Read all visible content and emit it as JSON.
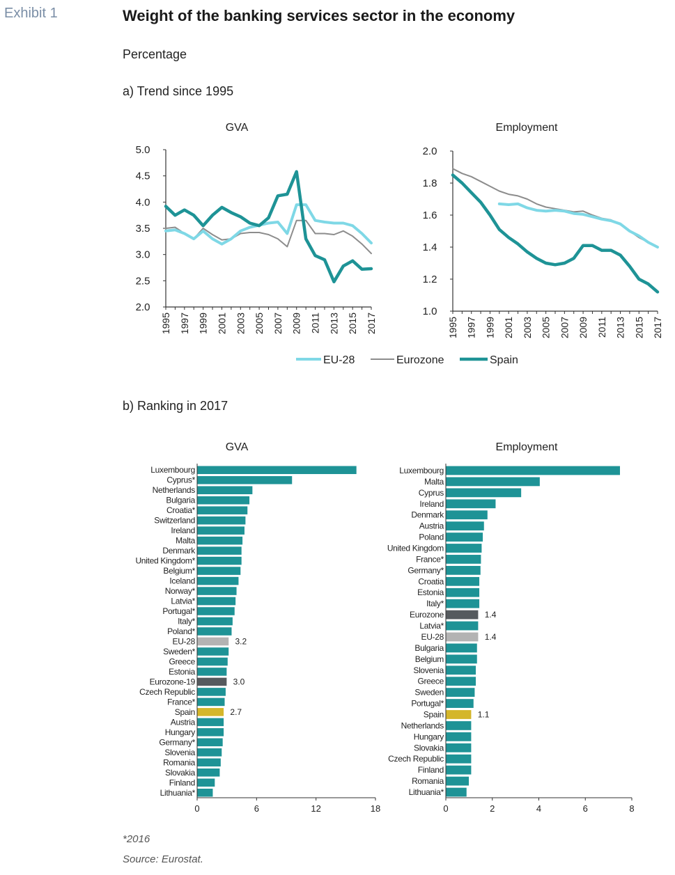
{
  "header": {
    "exhibit": "Exhibit 1",
    "title": "Weight of the banking services sector in the economy",
    "subtitle": "Percentage",
    "section_a": "a) Trend since 1995",
    "section_b": "b) Ranking in 2017"
  },
  "footer": {
    "note": "*2016",
    "source": "Source: Eurostat."
  },
  "colors": {
    "eu28": "#7fd8e6",
    "eurozone": "#8c8c8c",
    "spain": "#1e9396",
    "bar": "#1e9396",
    "bar_eu": "#b3b3b3",
    "bar_ez": "#555a5e",
    "bar_spain": "#d4b62a"
  },
  "legend": [
    "EU-28",
    "Eurozone",
    "Spain"
  ],
  "chart_data": [
    {
      "type": "line",
      "title": "GVA",
      "years": [
        1995,
        1996,
        1997,
        1998,
        1999,
        2000,
        2001,
        2002,
        2003,
        2004,
        2005,
        2006,
        2007,
        2008,
        2009,
        2010,
        2011,
        2012,
        2013,
        2014,
        2015,
        2016,
        2017
      ],
      "xticks": [
        "1995",
        "1997",
        "1999",
        "2001",
        "2003",
        "2005",
        "2007",
        "2009",
        "2011",
        "2013",
        "2015",
        "2017"
      ],
      "ylim": [
        2.0,
        5.0
      ],
      "yticks": [
        "2.0",
        "2.5",
        "3.0",
        "3.5",
        "4.0",
        "4.5",
        "5.0"
      ],
      "series": [
        {
          "name": "EU-28",
          "values": [
            3.45,
            3.47,
            3.4,
            3.3,
            3.45,
            3.3,
            3.2,
            3.3,
            3.45,
            3.52,
            3.56,
            3.6,
            3.62,
            3.4,
            3.95,
            3.95,
            3.65,
            3.62,
            3.6,
            3.6,
            3.55,
            3.4,
            3.22
          ]
        },
        {
          "name": "Eurozone",
          "values": [
            3.5,
            3.52,
            3.4,
            3.3,
            3.5,
            3.38,
            3.28,
            3.3,
            3.4,
            3.42,
            3.42,
            3.38,
            3.3,
            3.15,
            3.65,
            3.65,
            3.4,
            3.4,
            3.38,
            3.45,
            3.35,
            3.2,
            3.02
          ]
        },
        {
          "name": "Spain",
          "values": [
            3.92,
            3.75,
            3.85,
            3.75,
            3.55,
            3.75,
            3.9,
            3.8,
            3.72,
            3.6,
            3.55,
            3.7,
            4.12,
            4.15,
            4.58,
            3.3,
            2.98,
            2.9,
            2.48,
            2.78,
            2.88,
            2.72,
            2.73
          ]
        }
      ]
    },
    {
      "type": "line",
      "title": "Employment",
      "years": [
        1995,
        1996,
        1997,
        1998,
        1999,
        2000,
        2001,
        2002,
        2003,
        2004,
        2005,
        2006,
        2007,
        2008,
        2009,
        2010,
        2011,
        2012,
        2013,
        2014,
        2015,
        2016,
        2017
      ],
      "xticks": [
        "1995",
        "1997",
        "1999",
        "2001",
        "2003",
        "2005",
        "2007",
        "2009",
        "2011",
        "2013",
        "2015",
        "2017"
      ],
      "ylim": [
        1.0,
        2.0
      ],
      "yticks": [
        "1.0",
        "1.2",
        "1.4",
        "1.6",
        "1.8",
        "2.0"
      ],
      "series": [
        {
          "name": "EU-28",
          "values": [
            null,
            null,
            null,
            null,
            null,
            1.67,
            1.665,
            1.67,
            1.645,
            1.63,
            1.625,
            1.63,
            1.625,
            1.61,
            1.605,
            1.59,
            1.575,
            1.565,
            1.545,
            1.5,
            1.47,
            1.43,
            1.4
          ]
        },
        {
          "name": "Eurozone",
          "values": [
            1.89,
            1.86,
            1.84,
            1.81,
            1.78,
            1.75,
            1.73,
            1.72,
            1.7,
            1.67,
            1.65,
            1.64,
            1.63,
            1.62,
            1.625,
            1.6,
            1.58,
            1.57,
            1.54,
            1.5,
            1.46,
            1.43,
            1.4
          ]
        },
        {
          "name": "Spain",
          "values": [
            1.85,
            1.8,
            1.74,
            1.68,
            1.6,
            1.51,
            1.46,
            1.42,
            1.37,
            1.33,
            1.3,
            1.29,
            1.3,
            1.33,
            1.41,
            1.41,
            1.38,
            1.38,
            1.35,
            1.28,
            1.2,
            1.17,
            1.12
          ]
        }
      ]
    },
    {
      "type": "bar",
      "orientation": "horizontal",
      "title": "GVA",
      "xlim": [
        0,
        18
      ],
      "xticks": [
        "0",
        "6",
        "12",
        "18"
      ],
      "categories": [
        "Luxembourg",
        "Cyprus*",
        "Netherlands",
        "Bulgaria",
        "Croatia*",
        "Switzerland",
        "Ireland",
        "Malta",
        "Denmark",
        "United Kingdom*",
        "Belgium*",
        "Iceland",
        "Norway*",
        "Latvia*",
        "Portugal*",
        "Italy*",
        "Poland*",
        "EU-28",
        "Sweden*",
        "Greece",
        "Estonia",
        "Eurozone-19",
        "Czech Republic",
        "France*",
        "Spain",
        "Austria",
        "Hungary",
        "Germany*",
        "Slovenia",
        "Romania",
        "Slovakia",
        "Finland",
        "Lithuania*"
      ],
      "values": [
        16.1,
        9.6,
        5.6,
        5.3,
        5.1,
        4.9,
        4.8,
        4.6,
        4.5,
        4.5,
        4.4,
        4.2,
        4.0,
        3.9,
        3.8,
        3.6,
        3.5,
        3.2,
        3.2,
        3.1,
        3.0,
        3.0,
        2.9,
        2.8,
        2.7,
        2.7,
        2.7,
        2.6,
        2.5,
        2.4,
        2.3,
        1.8,
        1.6
      ],
      "labels": {
        "EU-28": "3.2",
        "Eurozone-19": "3.0",
        "Spain": "2.7"
      }
    },
    {
      "type": "bar",
      "orientation": "horizontal",
      "title": "Employment",
      "xlim": [
        0,
        8
      ],
      "xticks": [
        "0",
        "2",
        "4",
        "6",
        "8"
      ],
      "categories": [
        "Luxembourg",
        "Malta",
        "Cyprus",
        "Ireland",
        "Denmark",
        "Austria",
        "Poland",
        "United Kingdom",
        "France*",
        "Germany*",
        "Croatia",
        "Estonia",
        "Italy*",
        "Eurozone",
        "Latvia*",
        "EU-28",
        "Bulgaria",
        "Belgium",
        "Slovenia",
        "Greece",
        "Sweden",
        "Portugal*",
        "Spain",
        "Netherlands",
        "Hungary",
        "Slovakia",
        "Czech Republic",
        "Finland",
        "Romania",
        "Lithuania*"
      ],
      "values": [
        7.5,
        4.05,
        3.25,
        2.15,
        1.8,
        1.65,
        1.6,
        1.55,
        1.52,
        1.5,
        1.45,
        1.45,
        1.45,
        1.4,
        1.4,
        1.4,
        1.35,
        1.35,
        1.3,
        1.3,
        1.25,
        1.2,
        1.1,
        1.1,
        1.1,
        1.1,
        1.1,
        1.1,
        1.0,
        0.9
      ],
      "labels": {
        "Eurozone": "1.4",
        "EU-28": "1.4",
        "Spain": "1.1"
      }
    }
  ]
}
